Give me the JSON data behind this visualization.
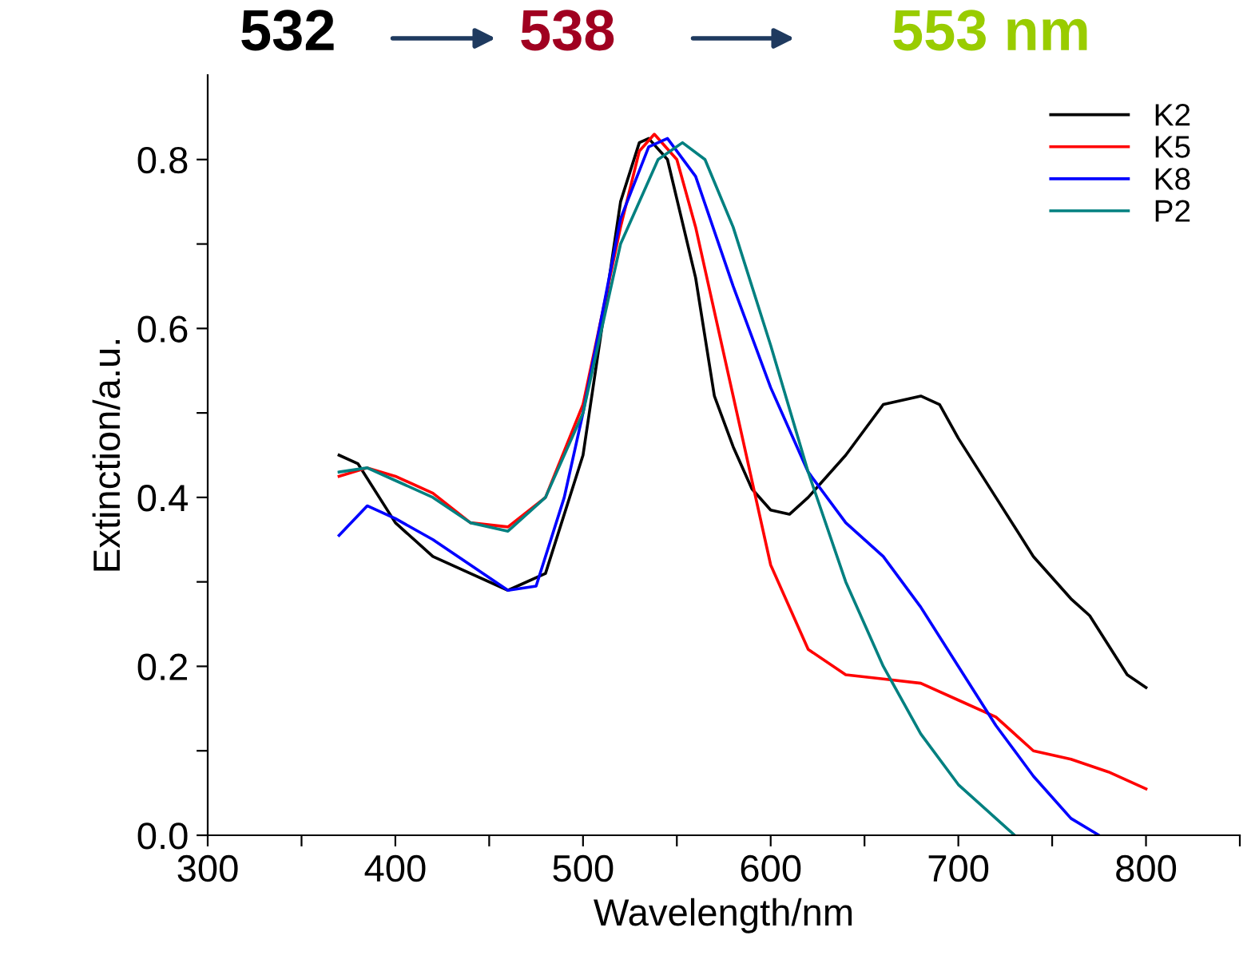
{
  "chart_data": {
    "type": "line",
    "xlabel": "Wavelength/nm",
    "ylabel": "Extinction/a.u.",
    "annotations": [
      "532",
      "538",
      "553 nm"
    ],
    "xlim": [
      300,
      850
    ],
    "ylim": [
      0,
      0.9
    ],
    "xticks": [
      300,
      {
        "value": 350,
        "label": null
      },
      400,
      {
        "value": 450,
        "label": null
      },
      500,
      {
        "value": 550,
        "label": null
      },
      600,
      {
        "value": 650,
        "label": null
      },
      700,
      {
        "value": 750,
        "label": null
      },
      800,
      {
        "value": 850,
        "label": null
      }
    ],
    "yticks": [
      {
        "value": 0,
        "label": "0.0"
      },
      {
        "value": 0.1,
        "label": null
      },
      0.2,
      {
        "value": 0.3,
        "label": null
      },
      0.4,
      {
        "value": 0.5,
        "label": null
      },
      0.6,
      {
        "value": 0.7,
        "label": null
      },
      0.8
    ],
    "legend": "top right",
    "grid": false,
    "marker": "none",
    "line_style": "solid",
    "series": [
      {
        "name": "K2",
        "color": "#000000",
        "x": [
          370,
          380,
          400,
          420,
          440,
          460,
          480,
          500,
          520,
          530,
          535,
          545,
          560,
          570,
          580,
          590,
          600,
          610,
          620,
          640,
          660,
          680,
          690,
          700,
          720,
          740,
          760,
          770,
          790,
          800
        ],
        "values": [
          0.45,
          0.44,
          0.37,
          0.33,
          0.31,
          0.29,
          0.31,
          0.45,
          0.75,
          0.82,
          0.825,
          0.8,
          0.66,
          0.52,
          0.46,
          0.41,
          0.385,
          0.38,
          0.4,
          0.45,
          0.51,
          0.52,
          0.51,
          0.47,
          0.4,
          0.33,
          0.28,
          0.26,
          0.19,
          0.175
        ]
      },
      {
        "name": "K5",
        "color": "#ff0000",
        "x": [
          370,
          385,
          400,
          420,
          440,
          460,
          480,
          500,
          520,
          530,
          538,
          550,
          560,
          580,
          600,
          620,
          640,
          660,
          680,
          700,
          720,
          740,
          760,
          780,
          800
        ],
        "values": [
          0.425,
          0.435,
          0.425,
          0.405,
          0.37,
          0.365,
          0.4,
          0.51,
          0.72,
          0.81,
          0.83,
          0.8,
          0.72,
          0.52,
          0.32,
          0.22,
          0.19,
          0.185,
          0.18,
          0.16,
          0.14,
          0.1,
          0.09,
          0.075,
          0.055
        ]
      },
      {
        "name": "K8",
        "color": "#0000ff",
        "x": [
          370,
          385,
          400,
          420,
          440,
          460,
          475,
          490,
          500,
          520,
          535,
          545,
          560,
          580,
          600,
          620,
          640,
          660,
          680,
          700,
          720,
          740,
          760,
          775
        ],
        "values": [
          0.355,
          0.39,
          0.375,
          0.35,
          0.32,
          0.29,
          0.295,
          0.4,
          0.5,
          0.73,
          0.815,
          0.825,
          0.78,
          0.65,
          0.53,
          0.43,
          0.37,
          0.33,
          0.27,
          0.2,
          0.13,
          0.07,
          0.02,
          0.0
        ]
      },
      {
        "name": "P2",
        "color": "#008080",
        "x": [
          370,
          385,
          400,
          420,
          440,
          460,
          480,
          500,
          520,
          540,
          553,
          565,
          580,
          600,
          620,
          640,
          660,
          680,
          700,
          720,
          730
        ],
        "values": [
          0.43,
          0.435,
          0.42,
          0.4,
          0.37,
          0.36,
          0.4,
          0.5,
          0.7,
          0.8,
          0.82,
          0.8,
          0.72,
          0.58,
          0.43,
          0.3,
          0.2,
          0.12,
          0.06,
          0.02,
          0.0
        ]
      }
    ]
  }
}
